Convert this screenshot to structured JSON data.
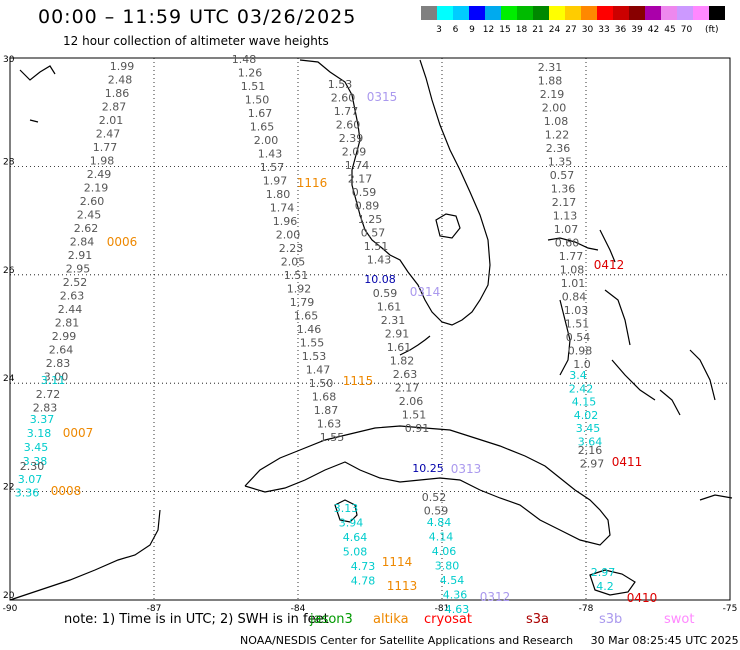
{
  "header": {
    "title": "00:00 – 11:59 UTC 03/26/2025",
    "subtitle": "12 hour collection of altimeter wave heights"
  },
  "color_scale": {
    "unit": "(ft)",
    "swatches": [
      "#808080",
      "#00ffff",
      "#00ccff",
      "#0000ff",
      "#00aaee",
      "#00ee00",
      "#00bb00",
      "#008800",
      "#ffff00",
      "#ffcc00",
      "#ff8800",
      "#ff0000",
      "#cc0000",
      "#880000",
      "#aa00aa",
      "#ee88ee",
      "#cc99ff",
      "#ff88ff",
      "#000000"
    ],
    "labels": [
      "3",
      "6",
      "9",
      "12",
      "15",
      "18",
      "21",
      "24",
      "27",
      "30",
      "33",
      "36",
      "39",
      "42",
      "45",
      "70"
    ]
  },
  "axes": {
    "lat_labels": [
      "30",
      "28",
      "26",
      "24",
      "22",
      "20"
    ],
    "lon_labels": [
      "-90",
      "-87",
      "-84",
      "-81",
      "-78",
      "-75"
    ]
  },
  "wave_heights": {
    "track_a": {
      "color": "#555555",
      "values": [
        "1.99",
        "2.48",
        "1.86",
        "2.87",
        "2.01",
        "2.47",
        "1.77",
        "1.98",
        "2.49",
        "2.19",
        "2.60",
        "2.45",
        "2.62",
        "2.84",
        "2.91",
        "2.95",
        "2.52",
        "2.63",
        "2.44",
        "2.81",
        "2.99",
        "2.64",
        "2.83",
        "3.00"
      ]
    },
    "track_a_cyan": {
      "color": "#00cccc",
      "values": [
        "3.11"
      ]
    },
    "track_b": {
      "color": "#555555",
      "values": [
        "2.72",
        "2.83"
      ]
    },
    "track_b_cyan": {
      "color": "#00cccc",
      "values": [
        "3.37",
        "3.18",
        "3.45",
        "3.38"
      ]
    },
    "track_b2": {
      "color": "#555555",
      "values": [
        "2.30"
      ]
    },
    "track_b_cyan2": {
      "color": "#00cccc",
      "values": [
        "3.07",
        "3.36"
      ]
    },
    "track_c": {
      "color": "#555555",
      "values": [
        "1.48",
        "1.26",
        "1.51",
        "1.50",
        "1.67",
        "1.65",
        "2.00",
        "1.43",
        "1.57",
        "1.97",
        "1.80",
        "1.74",
        "1.96",
        "2.00",
        "2.23",
        "2.05",
        "1.51",
        "1.92",
        "1.79",
        "1.65",
        "1.46",
        "1.55",
        "1.53",
        "1.47",
        "1.50",
        "1.68",
        "1.87",
        "1.63",
        "1.55"
      ]
    },
    "track_d": {
      "color": "#555555",
      "values": [
        "1.53",
        "2.60",
        "1.77",
        "2.60",
        "2.39",
        "2.09",
        "1.74",
        "2.17",
        "0.59",
        "0.89",
        "1.25",
        "0.57",
        "1.51",
        "1.43"
      ]
    },
    "track_d_blue": {
      "color": "#0000aa",
      "values": [
        "10.08"
      ]
    },
    "track_d2": {
      "color": "#555555",
      "values": [
        "0.59",
        "1.61",
        "2.31",
        "2.91",
        "1.61",
        "1.82",
        "2.63",
        "2.17",
        "2.06",
        "1.51",
        "0.91"
      ]
    },
    "track_e": {
      "color": "#555555",
      "values": [
        "2.31",
        "1.88",
        "2.19",
        "2.00",
        "1.08",
        "1.22",
        "2.36",
        "1.35",
        "0.57",
        "1.36",
        "2.17",
        "1.13",
        "1.07",
        "0.60",
        "1.77",
        "1.08",
        "1.01",
        "0.84",
        "1.03",
        "1.51",
        "0.54",
        "0.98",
        "1.0"
      ]
    },
    "track_e_cyan": {
      "color": "#00cccc",
      "values": [
        "3.4",
        "2.42",
        "4.15",
        "4.02",
        "3.45",
        "3.64"
      ]
    },
    "track_e2": {
      "color": "#555555",
      "values": [
        "2.16",
        "2.97"
      ]
    },
    "track_f_cyan": {
      "color": "#00cccc",
      "values": [
        "3.13",
        "3.94",
        "4.64",
        "5.08",
        "4.73",
        "4.78"
      ]
    },
    "track_g": {
      "color": "#555555",
      "values": [
        "0.52",
        "0.59"
      ]
    },
    "track_g_cyan": {
      "color": "#00cccc",
      "values": [
        "4.84",
        "4.14",
        "4.06",
        "3.80",
        "4.54",
        "4.36",
        "4.63"
      ]
    },
    "track_h_cyan": {
      "color": "#00cccc",
      "values": [
        "2.97",
        "4.2"
      ]
    },
    "track_blue2": {
      "color": "#0000aa",
      "values": [
        "10.25"
      ]
    }
  },
  "pass_labels": [
    {
      "text": "0315",
      "color": "#aa99ee"
    },
    {
      "text": "1116",
      "color": "#ee8800"
    },
    {
      "text": "0006",
      "color": "#ee8800"
    },
    {
      "text": "0412",
      "color": "#dd0000"
    },
    {
      "text": "0314",
      "color": "#aa99ee"
    },
    {
      "text": "1115",
      "color": "#ee8800"
    },
    {
      "text": "0007",
      "color": "#ee8800"
    },
    {
      "text": "0411",
      "color": "#dd0000"
    },
    {
      "text": "0313",
      "color": "#aa99ee"
    },
    {
      "text": "0008",
      "color": "#ee8800"
    },
    {
      "text": "1114",
      "color": "#ee8800"
    },
    {
      "text": "1113",
      "color": "#ee8800"
    },
    {
      "text": "0312",
      "color": "#aa99ee"
    },
    {
      "text": "0410",
      "color": "#dd0000"
    }
  ],
  "note": {
    "prefix": "note: 1) Time is in UTC; 2) SWH is in feet",
    "satellites": [
      {
        "name": "jason3",
        "color": "#009900"
      },
      {
        "name": "altika",
        "color": "#ee8800"
      },
      {
        "name": "cryosat",
        "color": "#ff0000"
      },
      {
        "name": "s3a",
        "color": "#aa0000"
      },
      {
        "name": "s3b",
        "color": "#aa99ee"
      },
      {
        "name": "swot",
        "color": "#ff88ff"
      }
    ]
  },
  "footer": {
    "credit": "NOAA/NESDIS Center for Satellite Applications and Research",
    "timestamp": "30 Mar 08:25:45 UTC 2025"
  }
}
